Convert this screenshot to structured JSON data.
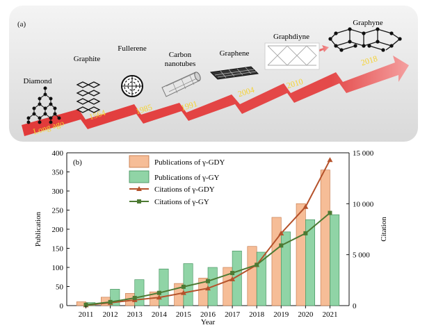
{
  "panel_a": {
    "label": "(a)",
    "items": [
      {
        "name": "Diamond",
        "year": "Long ago"
      },
      {
        "name": "Graphite",
        "year": "1564"
      },
      {
        "name": "Fullerene",
        "year": "1985"
      },
      {
        "name_lines": [
          "Carbon",
          "nanotubes"
        ],
        "year": "1991"
      },
      {
        "name": "Graphene",
        "year": "2004"
      },
      {
        "name": "Graphdiyne",
        "year": "2010"
      },
      {
        "name": "Graphyne",
        "year": "2018"
      }
    ],
    "colors": {
      "arrow": "#e23a3a",
      "year_text": "#f5d232"
    }
  },
  "chart_data": {
    "label": "(b)",
    "type": "bar",
    "categories": [
      "2011",
      "2012",
      "2013",
      "2014",
      "2015",
      "2016",
      "2017",
      "2018",
      "2019",
      "2020",
      "2021"
    ],
    "xlabel": "Year",
    "ylabel": "Publication",
    "y2label": "Citation",
    "ylim": [
      0,
      400
    ],
    "y2lim": [
      0,
      15000
    ],
    "yticks": [
      "0",
      "50",
      "100",
      "150",
      "200",
      "250",
      "300",
      "350",
      "400"
    ],
    "y2ticks": [
      "0",
      "5 000",
      "10 000",
      "15 000"
    ],
    "bar_series": [
      {
        "name": "Publications of γ-GDY",
        "color": "#f6bd97",
        "values": [
          10,
          22,
          32,
          36,
          58,
          72,
          100,
          155,
          231,
          267,
          355
        ]
      },
      {
        "name": "Publications of γ-GY",
        "color": "#90d4a6",
        "values": [
          8,
          43,
          68,
          96,
          110,
          100,
          143,
          140,
          193,
          225,
          238
        ]
      }
    ],
    "line_series": [
      {
        "name": "Citations of γ-GDY",
        "color": "#b5522b",
        "marker": "triangle",
        "values": [
          40,
          280,
          550,
          800,
          1250,
          1700,
          2600,
          4000,
          7100,
          9700,
          14300
        ]
      },
      {
        "name": "Citations of γ-GY",
        "color": "#4d7a33",
        "marker": "square",
        "values": [
          80,
          350,
          750,
          1250,
          1850,
          2400,
          3200,
          4000,
          5900,
          7100,
          9100
        ]
      }
    ],
    "legend_position": "top-left"
  }
}
